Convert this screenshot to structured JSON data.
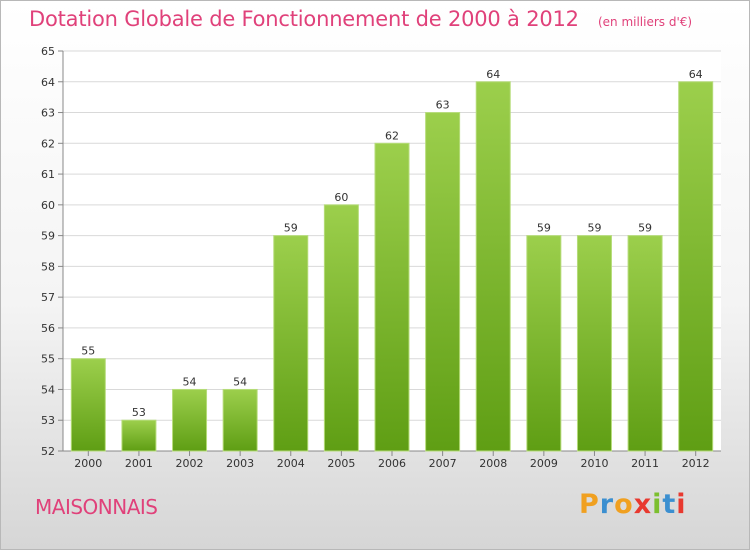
{
  "header": {
    "title": "Dotation Globale de Fonctionnement de 2000 à 2012",
    "unit": "(en milliers d'€)"
  },
  "footer": {
    "town": "MAISONNAIS",
    "brand_logo": "Proxiti"
  },
  "colors": {
    "title": "#e0417a",
    "bar_light": "#9ccf4c",
    "bar_dark": "#5f9e14",
    "grid": "#d9d9d9"
  },
  "chart_data": {
    "type": "bar",
    "categories": [
      "2000",
      "2001",
      "2002",
      "2003",
      "2004",
      "2005",
      "2006",
      "2007",
      "2008",
      "2009",
      "2010",
      "2011",
      "2012"
    ],
    "values": [
      55,
      53,
      54,
      54,
      59,
      60,
      62,
      63,
      64,
      59,
      59,
      59,
      64
    ],
    "ylim": [
      52,
      65
    ],
    "yticks": [
      52,
      53,
      54,
      55,
      56,
      57,
      58,
      59,
      60,
      61,
      62,
      63,
      64,
      65
    ],
    "grid": true,
    "data_labels": true
  }
}
